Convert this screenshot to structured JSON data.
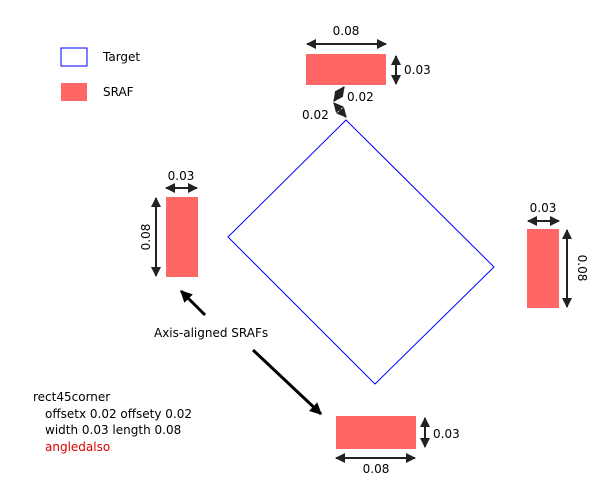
{
  "legend": {
    "items": [
      {
        "label": "Target",
        "style": "outline",
        "color": "#0000ff"
      },
      {
        "label": "SRAF",
        "style": "fill",
        "color": "#ff6666"
      }
    ]
  },
  "dimensions": {
    "top_width": "0.08",
    "top_height": "0.03",
    "offset_x": "0.02",
    "offset_y": "0.02",
    "left_width": "0.03",
    "left_length": "0.08",
    "right_width": "0.03",
    "right_length": "0.08",
    "bottom_height": "0.03",
    "bottom_width": "0.08"
  },
  "annotation": "Axis-aligned SRAFs",
  "code": {
    "line1": "rect45corner",
    "line2": "offsetx 0.02 offsety 0.02",
    "line3": "width 0.03 length 0.08",
    "line4": "angledalso",
    "highlight_color": "#dd0000"
  },
  "colors": {
    "target": "#0000ff",
    "sraf": "#ff6666",
    "arrow": "#000000",
    "dimension": "#222222"
  }
}
